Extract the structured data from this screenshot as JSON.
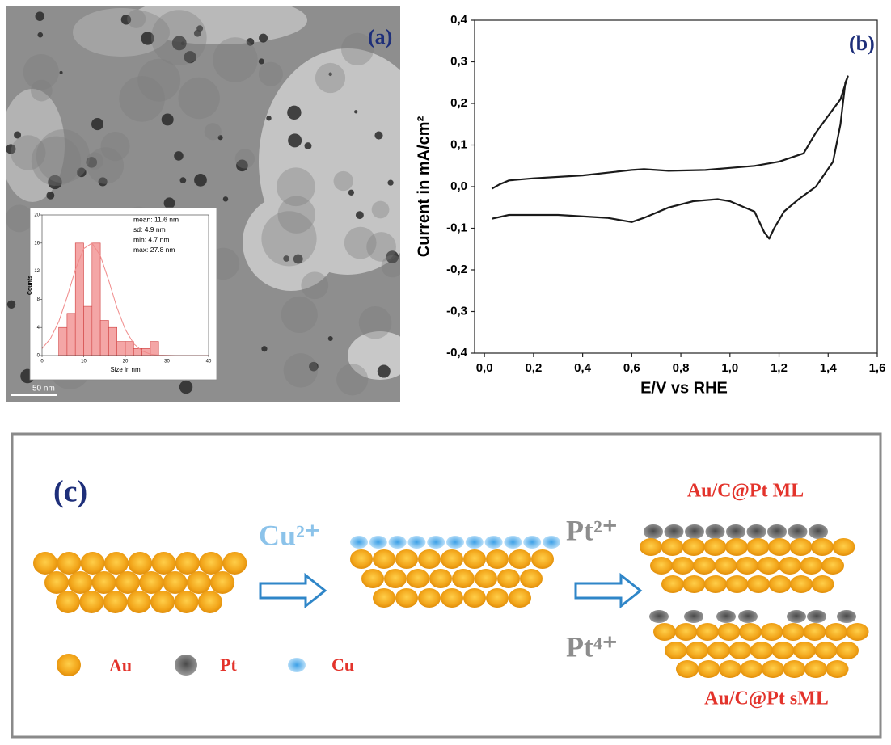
{
  "panel_labels": [
    "(a)",
    "(b)",
    "(c)"
  ],
  "tem": {
    "scale_bar": "50 nm"
  },
  "chart_data": [
    {
      "type": "histogram",
      "xlabel": "Size in nm",
      "ylabel": "Counts",
      "bins": [
        4,
        6,
        8,
        10,
        12,
        14,
        16,
        18,
        20,
        22,
        24,
        26,
        28
      ],
      "values": [
        4,
        6,
        16,
        7,
        16,
        5,
        4,
        2,
        2,
        1,
        1,
        2
      ],
      "color": "#f4a6a6",
      "edge_color": "#d04040",
      "xlim": [
        0,
        40
      ],
      "ylim": [
        0,
        20
      ],
      "xticks": [
        0,
        10,
        20,
        30,
        40
      ],
      "yticks": [
        0,
        4,
        8,
        12,
        16,
        20
      ],
      "annotations": [
        "mean: 11.6 nm",
        "sd: 4.9 nm",
        "min: 4.7 nm",
        "max: 27.8 nm"
      ],
      "fit": {
        "color": "#f08a8a",
        "x": [
          0,
          2,
          4,
          6,
          8,
          10,
          12,
          14,
          16,
          18,
          20,
          22,
          24,
          26,
          28,
          32,
          40
        ],
        "values": [
          1,
          2.4,
          4.8,
          8.3,
          12.2,
          15.2,
          16,
          14.2,
          10.7,
          6.8,
          3.7,
          1.7,
          0.65,
          0.2,
          0.06,
          0,
          0
        ]
      }
    },
    {
      "type": "line",
      "xlabel": "E/V vs RHE",
      "ylabel": "Current in mA/cm²",
      "color": "#1a1a1a",
      "xlim": [
        -0.04,
        1.6
      ],
      "ylim": [
        -0.4,
        0.4
      ],
      "xticks": [
        {
          "value": 0,
          "label": "0,0"
        },
        {
          "value": 0.2,
          "label": "0,2"
        },
        {
          "value": 0.4,
          "label": "0,4"
        },
        {
          "value": 0.6,
          "label": "0,6"
        },
        {
          "value": 0.8,
          "label": "0,8"
        },
        {
          "value": 1.0,
          "label": "1,0"
        },
        {
          "value": 1.2,
          "label": "1,2"
        },
        {
          "value": 1.4,
          "label": "1,4"
        },
        {
          "value": 1.6,
          "label": "1,6"
        }
      ],
      "yticks": [
        {
          "value": -0.4,
          "label": "-0,4"
        },
        {
          "value": -0.3,
          "label": "-0,3"
        },
        {
          "value": -0.2,
          "label": "-0,2"
        },
        {
          "value": -0.1,
          "label": "-0,1"
        },
        {
          "value": 0,
          "label": "0,0"
        },
        {
          "value": 0.1,
          "label": "0,1"
        },
        {
          "value": 0.2,
          "label": "0,2"
        },
        {
          "value": 0.3,
          "label": "0,3"
        },
        {
          "value": 0.4,
          "label": "0,4"
        }
      ],
      "x": [
        0.03,
        0.06,
        0.1,
        0.2,
        0.4,
        0.6,
        0.65,
        0.75,
        0.9,
        1.0,
        1.1,
        1.2,
        1.3,
        1.35,
        1.4,
        1.45,
        1.48,
        1.47,
        1.45,
        1.42,
        1.35,
        1.28,
        1.22,
        1.18,
        1.16,
        1.14,
        1.1,
        1.0,
        0.95,
        0.85,
        0.75,
        0.65,
        0.6,
        0.5,
        0.3,
        0.1,
        0.03
      ],
      "values": [
        -0.005,
        0.005,
        0.015,
        0.02,
        0.027,
        0.04,
        0.042,
        0.038,
        0.04,
        0.045,
        0.05,
        0.06,
        0.08,
        0.13,
        0.17,
        0.21,
        0.265,
        0.25,
        0.15,
        0.06,
        0.0,
        -0.03,
        -0.06,
        -0.1,
        -0.125,
        -0.11,
        -0.06,
        -0.035,
        -0.03,
        -0.035,
        -0.05,
        -0.075,
        -0.085,
        -0.075,
        -0.068,
        -0.068,
        -0.077
      ]
    }
  ],
  "scheme": {
    "reagents": {
      "cu": "Cu²⁺",
      "pt2": "Pt²⁺",
      "pt4": "Pt⁴⁺"
    },
    "products": [
      "Au/C@Pt ML",
      "Au/C@Pt sML"
    ],
    "legend": [
      "Au",
      "Pt",
      "Cu"
    ]
  }
}
